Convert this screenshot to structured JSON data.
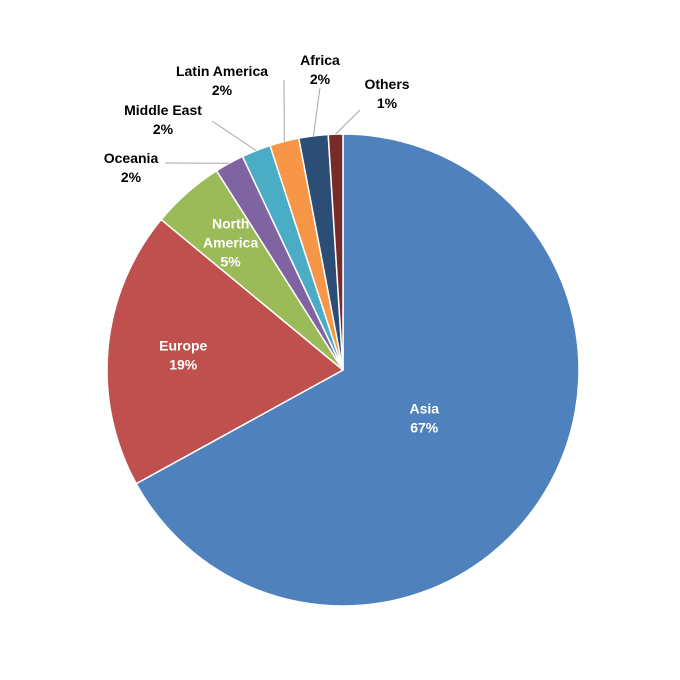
{
  "chart_data": {
    "type": "pie",
    "title": "",
    "legend": "none",
    "start": "12 o'clock",
    "direction": "clockwise",
    "slices": [
      {
        "name": "Asia",
        "value": 67,
        "label": "67%",
        "color": "#4f81bd",
        "label_pos": "inside"
      },
      {
        "name": "Europe",
        "value": 19,
        "label": "19%",
        "color": "#c0504d",
        "label_pos": "inside"
      },
      {
        "name": "North America",
        "value": 5,
        "label": "5%",
        "color": "#9bbb59",
        "label_pos": "inside"
      },
      {
        "name": "Oceania",
        "value": 2,
        "label": "2%",
        "color": "#8064a2",
        "label_pos": "outside"
      },
      {
        "name": "Middle East",
        "value": 2,
        "label": "2%",
        "color": "#4bacc6",
        "label_pos": "outside"
      },
      {
        "name": "Latin America",
        "value": 2,
        "label": "2%",
        "color": "#f79646",
        "label_pos": "outside"
      },
      {
        "name": "Africa",
        "value": 2,
        "label": "2%",
        "color": "#2c4d75",
        "label_pos": "outside"
      },
      {
        "name": "Others",
        "value": 1,
        "label": "1%",
        "color": "#772c2a",
        "label_pos": "outside"
      }
    ]
  }
}
